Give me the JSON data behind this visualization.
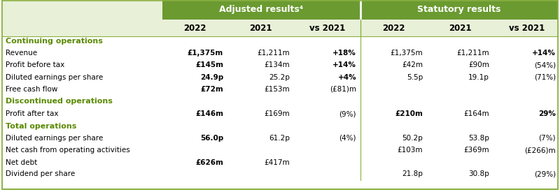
{
  "header_dark_green": "#6a9a30",
  "header_light_green": "#e8f0d8",
  "text_green": "#5a8a00",
  "border_color": "#8ab040",
  "bg_color": "#ffffff",
  "sections": [
    {
      "label": "Continuing operations",
      "rows": [
        {
          "label": "Revenue",
          "adj": [
            "£1,375m",
            "£1,211m",
            "+18%"
          ],
          "stat": [
            "£1,375m",
            "£1,211m",
            "+14%"
          ],
          "adj_bold": [
            true,
            false,
            true
          ],
          "stat_bold": [
            false,
            false,
            true
          ]
        },
        {
          "label": "Profit before tax",
          "adj": [
            "£145m",
            "£134m",
            "+14%"
          ],
          "stat": [
            "£42m",
            "£90m",
            "(54%)"
          ],
          "adj_bold": [
            true,
            false,
            true
          ],
          "stat_bold": [
            false,
            false,
            false
          ]
        },
        {
          "label": "Diluted earnings per share",
          "adj": [
            "24.9p",
            "25.2p",
            "+4%"
          ],
          "stat": [
            "5.5p",
            "19.1p",
            "(71%)"
          ],
          "adj_bold": [
            true,
            false,
            true
          ],
          "stat_bold": [
            false,
            false,
            false
          ]
        },
        {
          "label": "Free cash flow",
          "adj": [
            "£72m",
            "£153m",
            "(£81)m"
          ],
          "stat": [
            "",
            "",
            ""
          ],
          "adj_bold": [
            true,
            false,
            false
          ],
          "stat_bold": [
            false,
            false,
            false
          ]
        }
      ]
    },
    {
      "label": "Discontinued operations",
      "rows": [
        {
          "label": "Profit after tax",
          "adj": [
            "£146m",
            "£169m",
            "(9%)"
          ],
          "stat": [
            "£210m",
            "£164m",
            "29%"
          ],
          "adj_bold": [
            true,
            false,
            false
          ],
          "stat_bold": [
            true,
            false,
            true
          ]
        }
      ]
    },
    {
      "label": "Total operations",
      "rows": [
        {
          "label": "Diluted earnings per share",
          "adj": [
            "56.0p",
            "61.2p",
            "(4%)"
          ],
          "stat": [
            "50.2p",
            "53.8p",
            "(7%)"
          ],
          "adj_bold": [
            true,
            false,
            false
          ],
          "stat_bold": [
            false,
            false,
            false
          ]
        },
        {
          "label": "Net cash from operating activities",
          "adj": [
            "",
            "",
            ""
          ],
          "stat": [
            "£103m",
            "£369m",
            "(£266)m"
          ],
          "adj_bold": [
            false,
            false,
            false
          ],
          "stat_bold": [
            false,
            false,
            false
          ]
        },
        {
          "label": "Net debt",
          "adj": [
            "£626m",
            "£417m",
            ""
          ],
          "stat": [
            "",
            "",
            ""
          ],
          "adj_bold": [
            true,
            false,
            false
          ],
          "stat_bold": [
            false,
            false,
            false
          ]
        },
        {
          "label": "Dividend per share",
          "adj": [
            "",
            "",
            ""
          ],
          "stat": [
            "21.8p",
            "30.8p",
            "(29%)"
          ],
          "adj_bold": [
            false,
            false,
            false
          ],
          "stat_bold": [
            false,
            false,
            false
          ]
        }
      ]
    }
  ],
  "figsize": [
    8.0,
    2.75
  ],
  "dpi": 100
}
